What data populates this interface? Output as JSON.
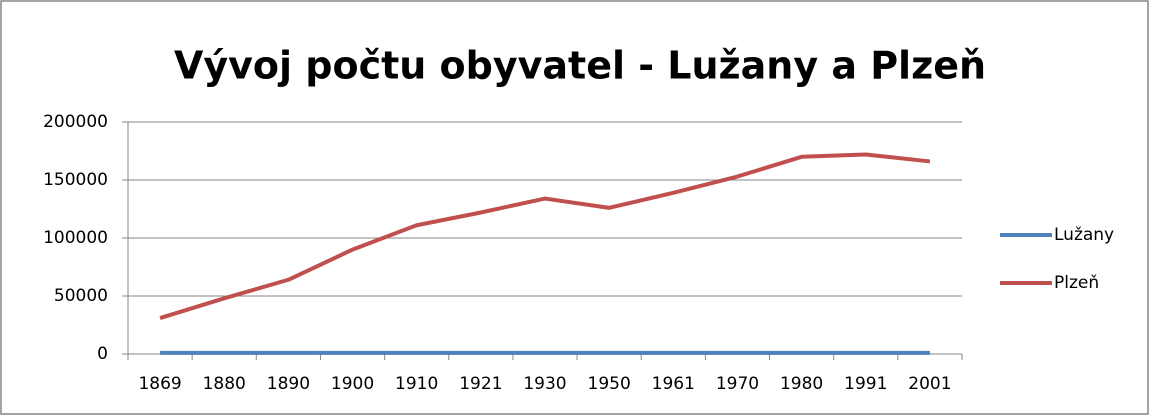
{
  "chart_data": {
    "type": "line",
    "title": "Vývoj počtu obyvatel - Lužany a Plzeň",
    "categories": [
      "1869",
      "1880",
      "1890",
      "1900",
      "1910",
      "1921",
      "1930",
      "1950",
      "1961",
      "1970",
      "1980",
      "1991",
      "2001"
    ],
    "series": [
      {
        "name": "Lužany",
        "color": "#4f81bd",
        "values": [
          1000,
          1000,
          1000,
          1000,
          1000,
          1000,
          1000,
          1000,
          1000,
          1000,
          1000,
          1000,
          1000
        ]
      },
      {
        "name": "Plzeň",
        "color": "#c0504d",
        "values": [
          31000,
          48000,
          64000,
          90000,
          111000,
          122000,
          134000,
          126000,
          139000,
          153000,
          170000,
          172000,
          166000
        ]
      }
    ],
    "ylim": [
      0,
      200000
    ],
    "yticks": [
      0,
      50000,
      100000,
      150000,
      200000
    ],
    "grid": true,
    "legend": "right"
  }
}
